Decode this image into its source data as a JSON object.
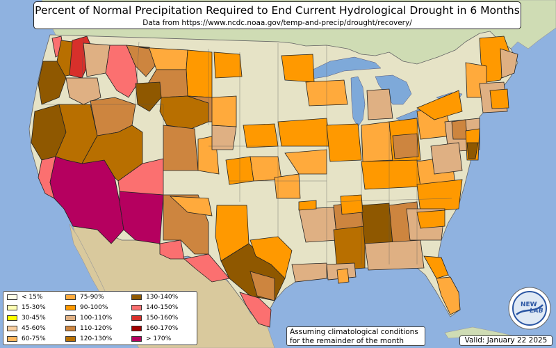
{
  "title": "Percent of Normal Precipitation Required to End Current Hydrological Drought in 6 Months",
  "subtitle": "Data from https://www.ncdc.noaa.gov/temp-and-precip/drought/recovery/",
  "note": {
    "line1": "Assuming climatological conditions",
    "line2": "for the remainder of the month"
  },
  "valid": "Valid: January 22 2025",
  "logo": {
    "text_main": "NEW",
    "text_lab": "LAB",
    "icon": "lab-logo-icon"
  },
  "colors": {
    "ocean": "#8fb2e0",
    "land": "#e6e3c6",
    "lake": "#7ea9d9"
  },
  "legend": [
    {
      "label": "< 15%",
      "color": "#fefee9"
    },
    {
      "label": "15-30%",
      "color": "#ffffb4"
    },
    {
      "label": "30-45%",
      "color": "#ffff00"
    },
    {
      "label": "45-60%",
      "color": "#f9cfa0"
    },
    {
      "label": "60-75%",
      "color": "#ffb75e"
    },
    {
      "label": "75-90%",
      "color": "#ffaa3c"
    },
    {
      "label": "90-100%",
      "color": "#ff9900"
    },
    {
      "label": "100-110%",
      "color": "#dfb083"
    },
    {
      "label": "110-120%",
      "color": "#cd853f"
    },
    {
      "label": "120-130%",
      "color": "#b86f00"
    },
    {
      "label": "130-140%",
      "color": "#8f5800"
    },
    {
      "label": "140-150%",
      "color": "#fb7070"
    },
    {
      "label": "150-160%",
      "color": "#d7302b"
    },
    {
      "label": "160-170%",
      "color": "#a00000"
    },
    {
      "label": "> 170%",
      "color": "#b5005f"
    }
  ]
}
